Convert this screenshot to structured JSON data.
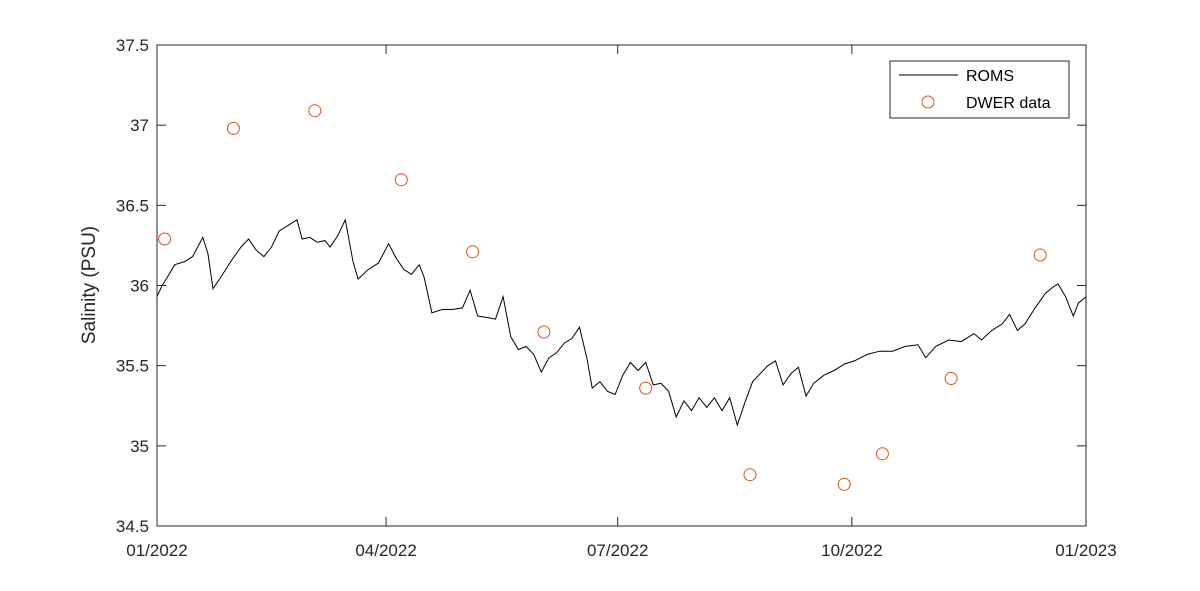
{
  "chart_data": {
    "type": "line",
    "xlabel": "",
    "ylabel": "Salinity (PSU)",
    "xlim": [
      "2022-01-01",
      "2023-01-01"
    ],
    "ylim": [
      34.5,
      37.5
    ],
    "x_ticks": [
      {
        "date": "2022-01-01",
        "label": "01/2022"
      },
      {
        "date": "2022-04-01",
        "label": "04/2022"
      },
      {
        "date": "2022-07-01",
        "label": "07/2022"
      },
      {
        "date": "2022-10-01",
        "label": "10/2022"
      },
      {
        "date": "2023-01-01",
        "label": "01/2023"
      }
    ],
    "y_ticks": [
      {
        "value": 34.5,
        "label": "34.5"
      },
      {
        "value": 35,
        "label": "35"
      },
      {
        "value": 35.5,
        "label": "35.5"
      },
      {
        "value": 36,
        "label": "36"
      },
      {
        "value": 36.5,
        "label": "36.5"
      },
      {
        "value": 37,
        "label": "37"
      },
      {
        "value": 37.5,
        "label": "37.5"
      }
    ],
    "grid": false,
    "legend_position": "top-right",
    "series": [
      {
        "name": "ROMS",
        "kind": "line",
        "color": "#000000",
        "points": [
          [
            "2022-01-01",
            35.93
          ],
          [
            "2022-01-03",
            36.0
          ],
          [
            "2022-01-05",
            36.05
          ],
          [
            "2022-01-08",
            36.13
          ],
          [
            "2022-01-12",
            36.15
          ],
          [
            "2022-01-15",
            36.18
          ],
          [
            "2022-01-19",
            36.3
          ],
          [
            "2022-01-21",
            36.2
          ],
          [
            "2022-01-23",
            35.98
          ],
          [
            "2022-01-26",
            36.05
          ],
          [
            "2022-01-30",
            36.15
          ],
          [
            "2022-02-03",
            36.24
          ],
          [
            "2022-02-06",
            36.29
          ],
          [
            "2022-02-09",
            36.22
          ],
          [
            "2022-02-12",
            36.18
          ],
          [
            "2022-02-15",
            36.24
          ],
          [
            "2022-02-18",
            36.34
          ],
          [
            "2022-02-22",
            36.38
          ],
          [
            "2022-02-25",
            36.41
          ],
          [
            "2022-02-27",
            36.29
          ],
          [
            "2022-03-02",
            36.3
          ],
          [
            "2022-03-05",
            36.27
          ],
          [
            "2022-03-08",
            36.28
          ],
          [
            "2022-03-10",
            36.24
          ],
          [
            "2022-03-13",
            36.31
          ],
          [
            "2022-03-16",
            36.41
          ],
          [
            "2022-03-19",
            36.15
          ],
          [
            "2022-03-21",
            36.04
          ],
          [
            "2022-03-25",
            36.1
          ],
          [
            "2022-03-29",
            36.14
          ],
          [
            "2022-04-02",
            36.26
          ],
          [
            "2022-04-05",
            36.17
          ],
          [
            "2022-04-08",
            36.1
          ],
          [
            "2022-04-11",
            36.07
          ],
          [
            "2022-04-14",
            36.13
          ],
          [
            "2022-04-16",
            36.05
          ],
          [
            "2022-04-19",
            35.83
          ],
          [
            "2022-04-23",
            35.85
          ],
          [
            "2022-04-27",
            35.85
          ],
          [
            "2022-05-01",
            35.86
          ],
          [
            "2022-05-04",
            35.97
          ],
          [
            "2022-05-07",
            35.81
          ],
          [
            "2022-05-11",
            35.8
          ],
          [
            "2022-05-14",
            35.79
          ],
          [
            "2022-05-17",
            35.93
          ],
          [
            "2022-05-20",
            35.68
          ],
          [
            "2022-05-23",
            35.6
          ],
          [
            "2022-05-26",
            35.62
          ],
          [
            "2022-05-29",
            35.57
          ],
          [
            "2022-06-01",
            35.46
          ],
          [
            "2022-06-04",
            35.55
          ],
          [
            "2022-06-07",
            35.58
          ],
          [
            "2022-06-10",
            35.64
          ],
          [
            "2022-06-13",
            35.67
          ],
          [
            "2022-06-16",
            35.74
          ],
          [
            "2022-06-19",
            35.54
          ],
          [
            "2022-06-21",
            35.36
          ],
          [
            "2022-06-24",
            35.4
          ],
          [
            "2022-06-27",
            35.34
          ],
          [
            "2022-06-30",
            35.32
          ],
          [
            "2022-07-03",
            35.44
          ],
          [
            "2022-07-06",
            35.52
          ],
          [
            "2022-07-09",
            35.47
          ],
          [
            "2022-07-12",
            35.52
          ],
          [
            "2022-07-15",
            35.38
          ],
          [
            "2022-07-18",
            35.39
          ],
          [
            "2022-07-21",
            35.34
          ],
          [
            "2022-07-24",
            35.18
          ],
          [
            "2022-07-27",
            35.28
          ],
          [
            "2022-07-30",
            35.22
          ],
          [
            "2022-08-02",
            35.3
          ],
          [
            "2022-08-05",
            35.24
          ],
          [
            "2022-08-08",
            35.3
          ],
          [
            "2022-08-11",
            35.22
          ],
          [
            "2022-08-14",
            35.3
          ],
          [
            "2022-08-17",
            35.13
          ],
          [
            "2022-08-20",
            35.27
          ],
          [
            "2022-08-23",
            35.4
          ],
          [
            "2022-08-26",
            35.45
          ],
          [
            "2022-08-29",
            35.5
          ],
          [
            "2022-09-01",
            35.53
          ],
          [
            "2022-09-04",
            35.38
          ],
          [
            "2022-09-07",
            35.45
          ],
          [
            "2022-09-10",
            35.49
          ],
          [
            "2022-09-13",
            35.31
          ],
          [
            "2022-09-16",
            35.39
          ],
          [
            "2022-09-20",
            35.44
          ],
          [
            "2022-09-24",
            35.47
          ],
          [
            "2022-09-28",
            35.51
          ],
          [
            "2022-10-02",
            35.53
          ],
          [
            "2022-10-07",
            35.57
          ],
          [
            "2022-10-12",
            35.59
          ],
          [
            "2022-10-17",
            35.59
          ],
          [
            "2022-10-22",
            35.62
          ],
          [
            "2022-10-27",
            35.63
          ],
          [
            "2022-10-30",
            35.55
          ],
          [
            "2022-11-03",
            35.62
          ],
          [
            "2022-11-08",
            35.66
          ],
          [
            "2022-11-13",
            35.65
          ],
          [
            "2022-11-18",
            35.7
          ],
          [
            "2022-11-21",
            35.66
          ],
          [
            "2022-11-25",
            35.72
          ],
          [
            "2022-11-29",
            35.76
          ],
          [
            "2022-12-02",
            35.82
          ],
          [
            "2022-12-05",
            35.72
          ],
          [
            "2022-12-08",
            35.76
          ],
          [
            "2022-12-12",
            35.86
          ],
          [
            "2022-12-16",
            35.95
          ],
          [
            "2022-12-19",
            35.99
          ],
          [
            "2022-12-21",
            36.01
          ],
          [
            "2022-12-24",
            35.93
          ],
          [
            "2022-12-27",
            35.81
          ],
          [
            "2022-12-29",
            35.89
          ],
          [
            "2023-01-01",
            35.93
          ]
        ]
      },
      {
        "name": "DWER data",
        "kind": "scatter",
        "marker": "circle",
        "color": "#d95319",
        "points": [
          [
            "2022-01-04",
            36.29
          ],
          [
            "2022-01-31",
            36.98
          ],
          [
            "2022-03-04",
            37.09
          ],
          [
            "2022-04-07",
            36.66
          ],
          [
            "2022-05-05",
            36.21
          ],
          [
            "2022-06-02",
            35.71
          ],
          [
            "2022-07-12",
            35.36
          ],
          [
            "2022-08-22",
            34.82
          ],
          [
            "2022-09-28",
            34.76
          ],
          [
            "2022-10-13",
            34.95
          ],
          [
            "2022-11-09",
            35.42
          ],
          [
            "2022-12-14",
            36.19
          ]
        ]
      }
    ]
  }
}
